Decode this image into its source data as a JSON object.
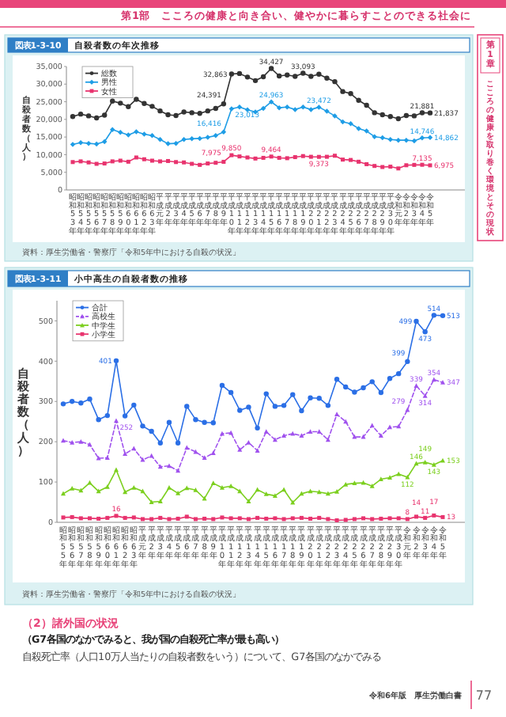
{
  "chart_data": [
    {
      "type": "line",
      "title": "自殺者数の年次推移",
      "ylabel": "自殺者数（人）",
      "legend": "top left",
      "annotations": [
        "第1部　こころの健康と向き合い、健やかに暮らすことのできる社会に",
        "第1章",
        "こころの健康を取り巻く環境とその現状",
        "図表1-3-10",
        "資料：厚生労働省・警察庁「令和5年中における自殺の状況」"
      ],
      "categories": [
        "昭和53年",
        "昭和54年",
        "昭和55年",
        "昭和56年",
        "昭和57年",
        "昭和58年",
        "昭和59年",
        "昭和60年",
        "昭和61年",
        "昭和62年",
        "昭和63年",
        "平成元年",
        "平成2年",
        "平成3年",
        "平成4年",
        "平成5年",
        "平成6年",
        "平成7年",
        "平成8年",
        "平成9年",
        "平成10年",
        "平成11年",
        "平成12年",
        "平成13年",
        "平成14年",
        "平成15年",
        "平成16年",
        "平成17年",
        "平成18年",
        "平成19年",
        "平成20年",
        "平成21年",
        "平成22年",
        "平成23年",
        "平成24年",
        "平成25年",
        "平成26年",
        "平成27年",
        "平成28年",
        "平成29年",
        "平成30年",
        "令和元年",
        "令和2年",
        "令和3年",
        "令和4年",
        "令和5年"
      ],
      "ylim": [
        0,
        35000
      ],
      "yticks": [
        0,
        {
          "value": 5000,
          "label": "5,000"
        },
        {
          "value": 10000,
          "label": "10,000"
        },
        {
          "value": 15000,
          "label": "15,000"
        },
        {
          "value": 20000,
          "label": "20,000"
        },
        {
          "value": 25000,
          "label": "25,000"
        },
        {
          "value": 30000,
          "label": "30,000"
        },
        {
          "value": 35000,
          "label": "35,000"
        }
      ],
      "series": [
        {
          "name": "総数",
          "color": "#333333",
          "marker": "circle",
          "values": [
            20800,
            21500,
            21000,
            20400,
            21200,
            25200,
            24600,
            23600,
            25700,
            24500,
            23700,
            22400,
            21300,
            21100,
            22100,
            21900,
            21700,
            22400,
            23100,
            24391,
            32863,
            33000,
            32000,
            31000,
            32100,
            34427,
            32300,
            32600,
            32200,
            33093,
            32200,
            32800,
            31700,
            30700,
            27900,
            27300,
            25400,
            24000,
            21900,
            21300,
            20800,
            20200,
            21100,
            21000,
            21881,
            21837
          ],
          "value_labels": [
            null,
            null,
            null,
            null,
            null,
            null,
            null,
            null,
            null,
            null,
            null,
            null,
            null,
            null,
            null,
            null,
            null,
            null,
            null,
            "24,391",
            "32,863",
            null,
            null,
            null,
            null,
            "34,427",
            null,
            null,
            null,
            "33,093",
            null,
            null,
            null,
            null,
            null,
            null,
            null,
            null,
            null,
            null,
            null,
            null,
            null,
            null,
            "21,881",
            "21,837"
          ]
        },
        {
          "name": "男性",
          "color": "#1e9de6",
          "marker": "diamond",
          "values": [
            12900,
            13400,
            13200,
            13000,
            13700,
            17100,
            16300,
            15600,
            16500,
            15800,
            15400,
            14300,
            13100,
            13200,
            14300,
            14500,
            14600,
            14900,
            15400,
            16416,
            23013,
            23500,
            22700,
            22100,
            23100,
            24963,
            23300,
            23500,
            22800,
            23500,
            22800,
            23472,
            22300,
            21000,
            19300,
            18800,
            17400,
            16700,
            15100,
            14800,
            14300,
            14100,
            14100,
            13900,
            14746,
            14862
          ],
          "value_labels": [
            null,
            null,
            null,
            null,
            null,
            null,
            null,
            null,
            null,
            null,
            null,
            null,
            null,
            null,
            null,
            null,
            null,
            null,
            null,
            "16,416",
            "23,013",
            null,
            null,
            null,
            null,
            "24,963",
            null,
            null,
            null,
            null,
            null,
            "23,472",
            null,
            null,
            null,
            null,
            null,
            null,
            null,
            null,
            null,
            null,
            null,
            null,
            "14,746",
            "14,862"
          ]
        },
        {
          "name": "女性",
          "color": "#e8336e",
          "marker": "square",
          "values": [
            7900,
            8100,
            7800,
            7400,
            7500,
            8100,
            8300,
            8000,
            9200,
            8700,
            8300,
            8100,
            8200,
            7900,
            7800,
            7400,
            7100,
            7500,
            7700,
            7975,
            9850,
            9500,
            9200,
            8900,
            9100,
            9464,
            9100,
            9000,
            9300,
            9600,
            9400,
            9373,
            9400,
            9700,
            8600,
            8500,
            8000,
            7300,
            6800,
            6500,
            6600,
            6100,
            7000,
            7100,
            7135,
            6975
          ],
          "value_labels": [
            null,
            null,
            null,
            null,
            null,
            null,
            null,
            null,
            null,
            null,
            null,
            null,
            null,
            null,
            null,
            null,
            null,
            null,
            null,
            "7,975",
            "9,850",
            null,
            null,
            null,
            null,
            "9,464",
            null,
            null,
            null,
            null,
            null,
            "9,373",
            null,
            null,
            null,
            null,
            null,
            null,
            null,
            null,
            null,
            null,
            null,
            null,
            "7,135",
            "6,975"
          ]
        }
      ]
    },
    {
      "type": "line",
      "title": "小中高生の自殺者数の推移",
      "ylabel": "自殺者数（人）",
      "legend": "top left",
      "annotations": [
        "図表1-3-11",
        "資料：厚生労働省・警察庁「令和5年中における自殺の状況」",
        "（2）諸外国の状況",
        "（G7各国のなかでみると、我が国の自殺死亡率が最も高い）",
        "自殺死亡率（人口10万人当たりの自殺者数をいう）について、G7各国のなかでみる",
        "令和6年版　厚生労働白書",
        "77"
      ],
      "categories": [
        "昭和55年",
        "昭和56年",
        "昭和57年",
        "昭和58年",
        "昭和59年",
        "昭和60年",
        "昭和61年",
        "昭和62年",
        "昭和63年",
        "平成元年",
        "平成2年",
        "平成3年",
        "平成4年",
        "平成5年",
        "平成6年",
        "平成7年",
        "平成8年",
        "平成9年",
        "平成10年",
        "平成11年",
        "平成12年",
        "平成13年",
        "平成14年",
        "平成15年",
        "平成16年",
        "平成17年",
        "平成18年",
        "平成19年",
        "平成20年",
        "平成21年",
        "平成22年",
        "平成23年",
        "平成24年",
        "平成25年",
        "平成26年",
        "平成27年",
        "平成28年",
        "平成29年",
        "平成30年",
        "令和元年",
        "令和2年",
        "令和3年",
        "令和4年",
        "令和5年"
      ],
      "ylim": [
        0,
        550
      ],
      "yticks": [
        0,
        100,
        200,
        300,
        400,
        500
      ],
      "series": [
        {
          "name": "合計",
          "color": "#2b6fe6",
          "marker": "circle",
          "values": [
            294,
            300,
            296,
            306,
            255,
            265,
            401,
            264,
            291,
            239,
            226,
            197,
            248,
            197,
            288,
            255,
            248,
            247,
            340,
            322,
            278,
            286,
            234,
            319,
            288,
            290,
            317,
            277,
            309,
            308,
            290,
            355,
            336,
            323,
            334,
            349,
            322,
            357,
            369,
            399,
            499,
            473,
            514,
            513
          ],
          "value_labels": [
            null,
            null,
            null,
            null,
            null,
            null,
            "401",
            null,
            null,
            null,
            null,
            null,
            null,
            null,
            null,
            null,
            null,
            null,
            null,
            null,
            null,
            null,
            null,
            null,
            null,
            null,
            null,
            null,
            null,
            null,
            null,
            null,
            null,
            null,
            null,
            null,
            null,
            null,
            null,
            "399",
            "499",
            "473",
            "514",
            "513"
          ]
        },
        {
          "name": "高校生",
          "color": "#a052ee",
          "marker": "triangle",
          "line_style": "dashed",
          "values": [
            203,
            198,
            200,
            193,
            159,
            160,
            252,
            170,
            183,
            155,
            165,
            138,
            140,
            128,
            185,
            175,
            160,
            172,
            220,
            222,
            180,
            198,
            178,
            225,
            205,
            215,
            220,
            215,
            225,
            225,
            205,
            268,
            250,
            212,
            212,
            240,
            215,
            236,
            238,
            279,
            339,
            314,
            354,
            347
          ],
          "value_labels": [
            null,
            null,
            null,
            null,
            null,
            null,
            "252",
            null,
            null,
            null,
            null,
            null,
            null,
            null,
            null,
            null,
            null,
            null,
            null,
            null,
            null,
            null,
            null,
            null,
            null,
            null,
            null,
            null,
            null,
            null,
            null,
            null,
            null,
            null,
            null,
            null,
            null,
            null,
            null,
            "279",
            "339",
            "314",
            "354",
            "347"
          ]
        },
        {
          "name": "中学生",
          "color": "#7ccf1f",
          "marker": "triangle",
          "values": [
            71,
            84,
            79,
            98,
            77,
            88,
            130,
            75,
            86,
            77,
            50,
            52,
            86,
            72,
            85,
            80,
            59,
            97,
            86,
            90,
            77,
            52,
            81,
            70,
            66,
            81,
            49,
            71,
            77,
            75,
            71,
            76,
            94,
            97,
            98,
            90,
            107,
            111,
            120,
            112,
            146,
            149,
            143,
            153
          ],
          "value_labels": [
            null,
            null,
            null,
            null,
            null,
            null,
            null,
            null,
            null,
            null,
            null,
            null,
            null,
            null,
            null,
            null,
            null,
            null,
            null,
            null,
            null,
            null,
            null,
            null,
            null,
            null,
            null,
            null,
            null,
            null,
            null,
            null,
            null,
            null,
            null,
            null,
            null,
            null,
            null,
            "112",
            "146",
            "149",
            "143",
            "153"
          ]
        },
        {
          "name": "小学生",
          "color": "#e8336e",
          "marker": "square",
          "values": [
            12,
            13,
            10,
            10,
            9,
            11,
            16,
            11,
            12,
            8,
            8,
            11,
            8,
            9,
            14,
            8,
            9,
            8,
            12,
            10,
            10,
            8,
            11,
            9,
            10,
            8,
            10,
            11,
            9,
            11,
            8,
            5,
            6,
            8,
            10,
            8,
            9,
            10,
            10,
            8,
            14,
            11,
            17,
            13
          ],
          "value_labels": [
            null,
            null,
            null,
            null,
            null,
            null,
            "16",
            null,
            null,
            null,
            null,
            null,
            null,
            null,
            null,
            null,
            null,
            null,
            null,
            null,
            null,
            null,
            null,
            null,
            null,
            null,
            null,
            null,
            null,
            null,
            null,
            null,
            null,
            null,
            null,
            null,
            null,
            null,
            null,
            "8",
            "14",
            "11",
            "17",
            "13"
          ]
        }
      ]
    }
  ]
}
